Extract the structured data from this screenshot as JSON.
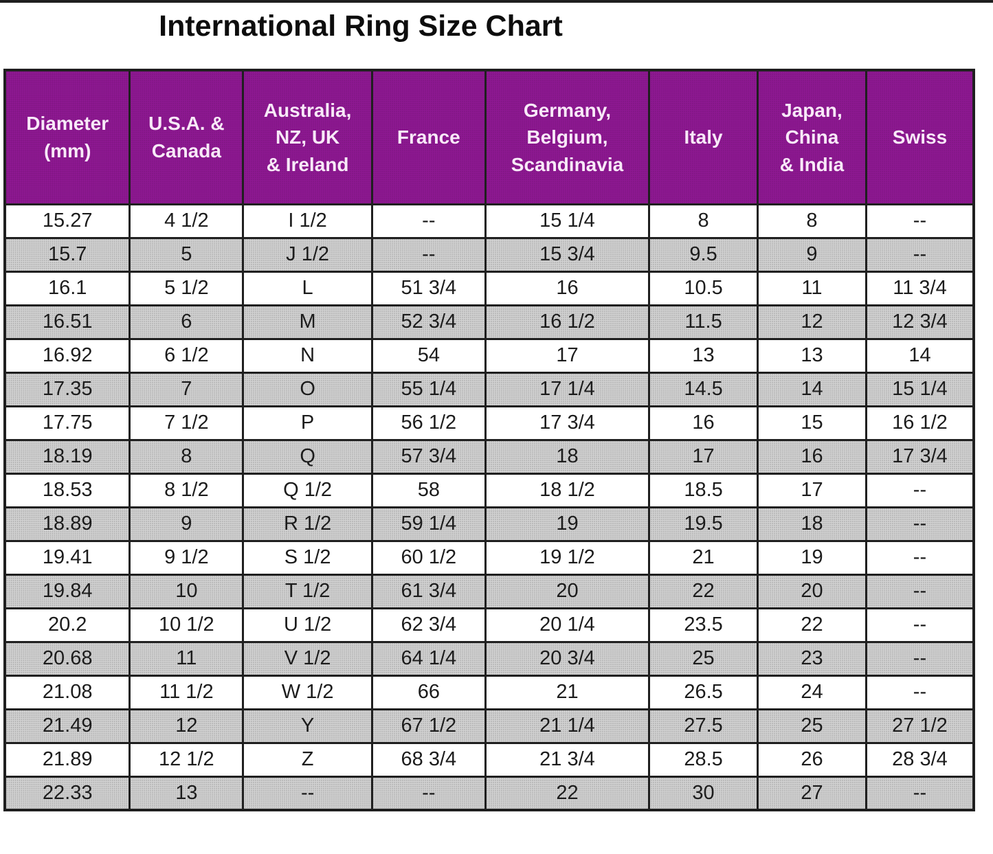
{
  "title": "International Ring Size Chart",
  "chart_data": {
    "type": "table",
    "title": "International Ring Size Chart",
    "columns": [
      "Diameter\n(mm)",
      "U.S.A. &\nCanada",
      "Australia,\nNZ, UK\n& Ireland",
      "France",
      "Germany,\nBelgium,\nScandinavia",
      "Italy",
      "Japan,\nChina\n& India",
      "Swiss"
    ],
    "rows": [
      [
        "15.27",
        "4 1/2",
        "I 1/2",
        "--",
        "15 1/4",
        "8",
        "8",
        "--"
      ],
      [
        "15.7",
        "5",
        "J 1/2",
        "--",
        "15 3/4",
        "9.5",
        "9",
        "--"
      ],
      [
        "16.1",
        "5 1/2",
        "L",
        "51 3/4",
        "16",
        "10.5",
        "11",
        "11 3/4"
      ],
      [
        "16.51",
        "6",
        "M",
        "52 3/4",
        "16 1/2",
        "11.5",
        "12",
        "12 3/4"
      ],
      [
        "16.92",
        "6 1/2",
        "N",
        "54",
        "17",
        "13",
        "13",
        "14"
      ],
      [
        "17.35",
        "7",
        "O",
        "55 1/4",
        "17 1/4",
        "14.5",
        "14",
        "15 1/4"
      ],
      [
        "17.75",
        "7 1/2",
        "P",
        "56 1/2",
        "17 3/4",
        "16",
        "15",
        "16 1/2"
      ],
      [
        "18.19",
        "8",
        "Q",
        "57 3/4",
        "18",
        "17",
        "16",
        "17 3/4"
      ],
      [
        "18.53",
        "8 1/2",
        "Q 1/2",
        "58",
        "18 1/2",
        "18.5",
        "17",
        "--"
      ],
      [
        "18.89",
        "9",
        "R 1/2",
        "59 1/4",
        "19",
        "19.5",
        "18",
        "--"
      ],
      [
        "19.41",
        "9 1/2",
        "S 1/2",
        "60 1/2",
        "19 1/2",
        "21",
        "19",
        "--"
      ],
      [
        "19.84",
        "10",
        "T 1/2",
        "61 3/4",
        "20",
        "22",
        "20",
        "--"
      ],
      [
        "20.2",
        "10 1/2",
        "U 1/2",
        "62 3/4",
        "20 1/4",
        "23.5",
        "22",
        "--"
      ],
      [
        "20.68",
        "11",
        "V 1/2",
        "64 1/4",
        "20 3/4",
        "25",
        "23",
        "--"
      ],
      [
        "21.08",
        "11 1/2",
        "W 1/2",
        "66",
        "21",
        "26.5",
        "24",
        "--"
      ],
      [
        "21.49",
        "12",
        "Y",
        "67 1/2",
        "21 1/4",
        "27.5",
        "25",
        "27 1/2"
      ],
      [
        "21.89",
        "12 1/2",
        "Z",
        "68 3/4",
        "21 3/4",
        "28.5",
        "26",
        "28 3/4"
      ],
      [
        "22.33",
        "13",
        "--",
        "--",
        "22",
        "30",
        "27",
        "--"
      ]
    ]
  },
  "colors": {
    "header_bg": "#8E1892",
    "header_text": "#F8E9F8",
    "row_alt": "#D2D2D2",
    "row_alt_dot": "#B2B2B2",
    "border": "#1F1F1F",
    "title_color": "#0D0D0D"
  }
}
